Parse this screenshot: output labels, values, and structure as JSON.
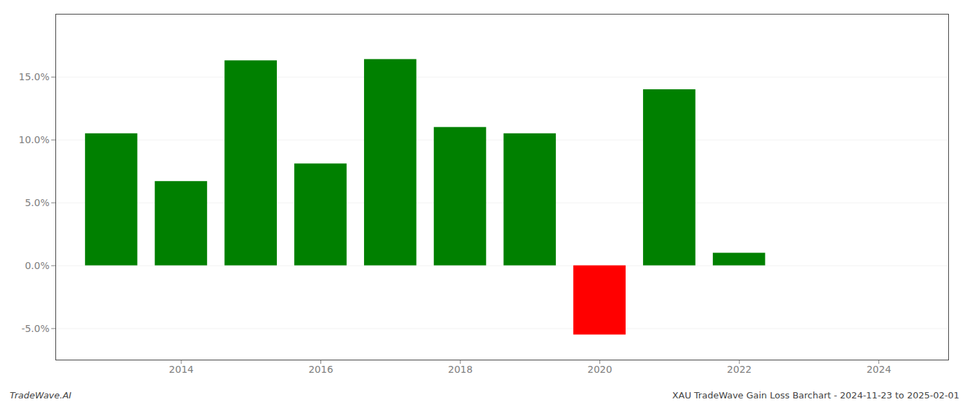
{
  "chart_data": {
    "type": "bar",
    "x": [
      2013,
      2014,
      2015,
      2016,
      2017,
      2018,
      2019,
      2020,
      2021,
      2022,
      2023
    ],
    "values": [
      0.105,
      0.067,
      0.163,
      0.081,
      0.164,
      0.11,
      0.105,
      -0.055,
      0.14,
      0.01,
      0.0
    ],
    "colors": [
      "#008000",
      "#008000",
      "#008000",
      "#008000",
      "#008000",
      "#008000",
      "#008000",
      "#ff0000",
      "#008000",
      "#008000",
      "#008000"
    ],
    "xlim": [
      2012.2,
      2025.0
    ],
    "xticks": [
      2014,
      2016,
      2018,
      2020,
      2022,
      2024
    ],
    "ylim": [
      -0.075,
      0.2
    ],
    "yticks": [
      {
        "value": -0.05,
        "label": "-5.0%"
      },
      {
        "value": 0.0,
        "label": "0.0%"
      },
      {
        "value": 0.05,
        "label": "5.0%"
      },
      {
        "value": 0.1,
        "label": "10.0%"
      },
      {
        "value": 0.15,
        "label": "15.0%"
      }
    ],
    "grid": true,
    "annotations": [
      "TradeWave.AI",
      "XAU TradeWave Gain Loss Barchart - 2024-11-23 to 2025-02-01"
    ]
  }
}
